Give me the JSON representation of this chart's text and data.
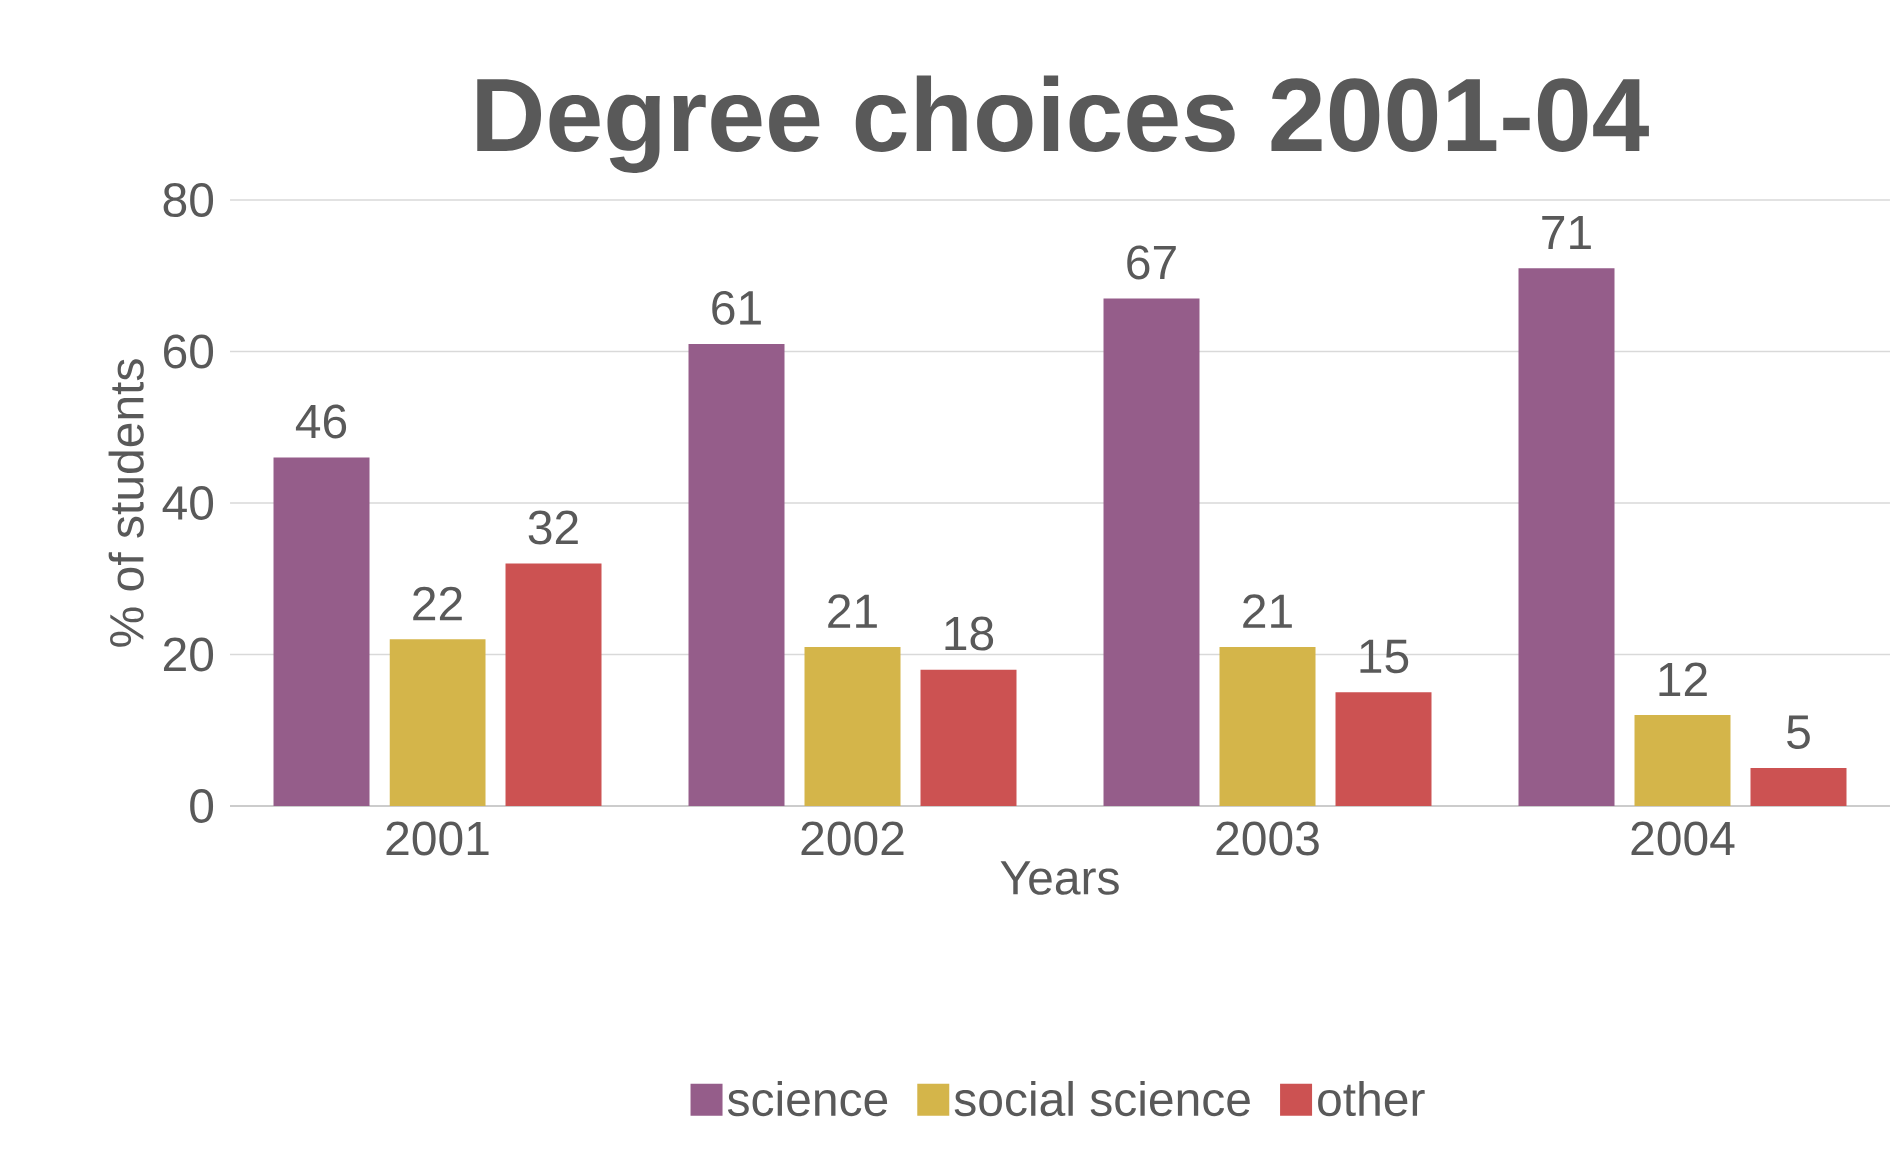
{
  "chart_data": {
    "type": "bar",
    "title": "Degree choices 2001-04",
    "xlabel": "Years",
    "ylabel": "% of students",
    "categories": [
      "2001",
      "2002",
      "2003",
      "2004"
    ],
    "series": [
      {
        "name": "science",
        "color": "#955d8a",
        "values": [
          46,
          61,
          67,
          71
        ]
      },
      {
        "name": "social science",
        "color": "#d4b54a",
        "values": [
          22,
          21,
          21,
          12
        ]
      },
      {
        "name": "other",
        "color": "#cc5252",
        "values": [
          32,
          18,
          15,
          5
        ]
      }
    ],
    "ylim": [
      0,
      80
    ],
    "yticks": [
      0,
      20,
      40,
      60,
      80
    ],
    "grid": "y",
    "legend": "bottom",
    "data_labels": true
  }
}
